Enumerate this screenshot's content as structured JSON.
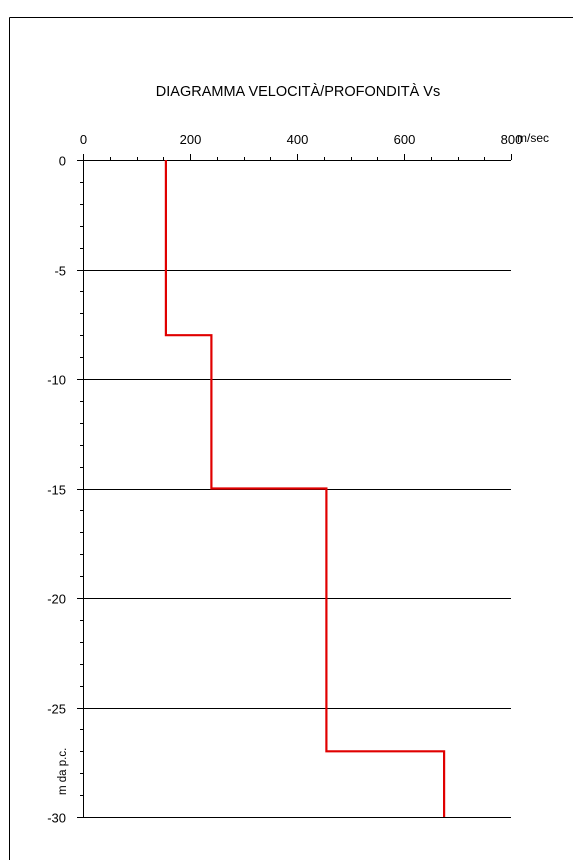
{
  "chart_data": {
    "type": "line",
    "title": "DIAGRAMMA VELOCITÀ/PROFONDITÀ Vs",
    "xlabel": "m/sec",
    "ylabel": "m da p.c.",
    "xlim": [
      0,
      800
    ],
    "ylim": [
      -30,
      0
    ],
    "x_ticks": [
      "0",
      "200",
      "400",
      "600",
      "800"
    ],
    "y_ticks": [
      "0",
      "-5",
      "-10",
      "-15",
      "-20",
      "-25",
      "-30"
    ],
    "x_axis_position": "top",
    "grid": "horizontal",
    "series": [
      {
        "color": "#e00000",
        "step_profile": [
          {
            "velocity": 155,
            "depth_top": 0,
            "depth_bottom": -8
          },
          {
            "velocity": 240,
            "depth_top": -8,
            "depth_bottom": -15
          },
          {
            "velocity": 455,
            "depth_top": -15,
            "depth_bottom": -27
          },
          {
            "velocity": 675,
            "depth_top": -27,
            "depth_bottom": -30
          }
        ],
        "x": [
          155,
          155,
          240,
          240,
          455,
          455,
          675,
          675
        ],
        "y": [
          0,
          -8,
          -8,
          -15,
          -15,
          -27,
          -27,
          -30
        ]
      }
    ]
  }
}
